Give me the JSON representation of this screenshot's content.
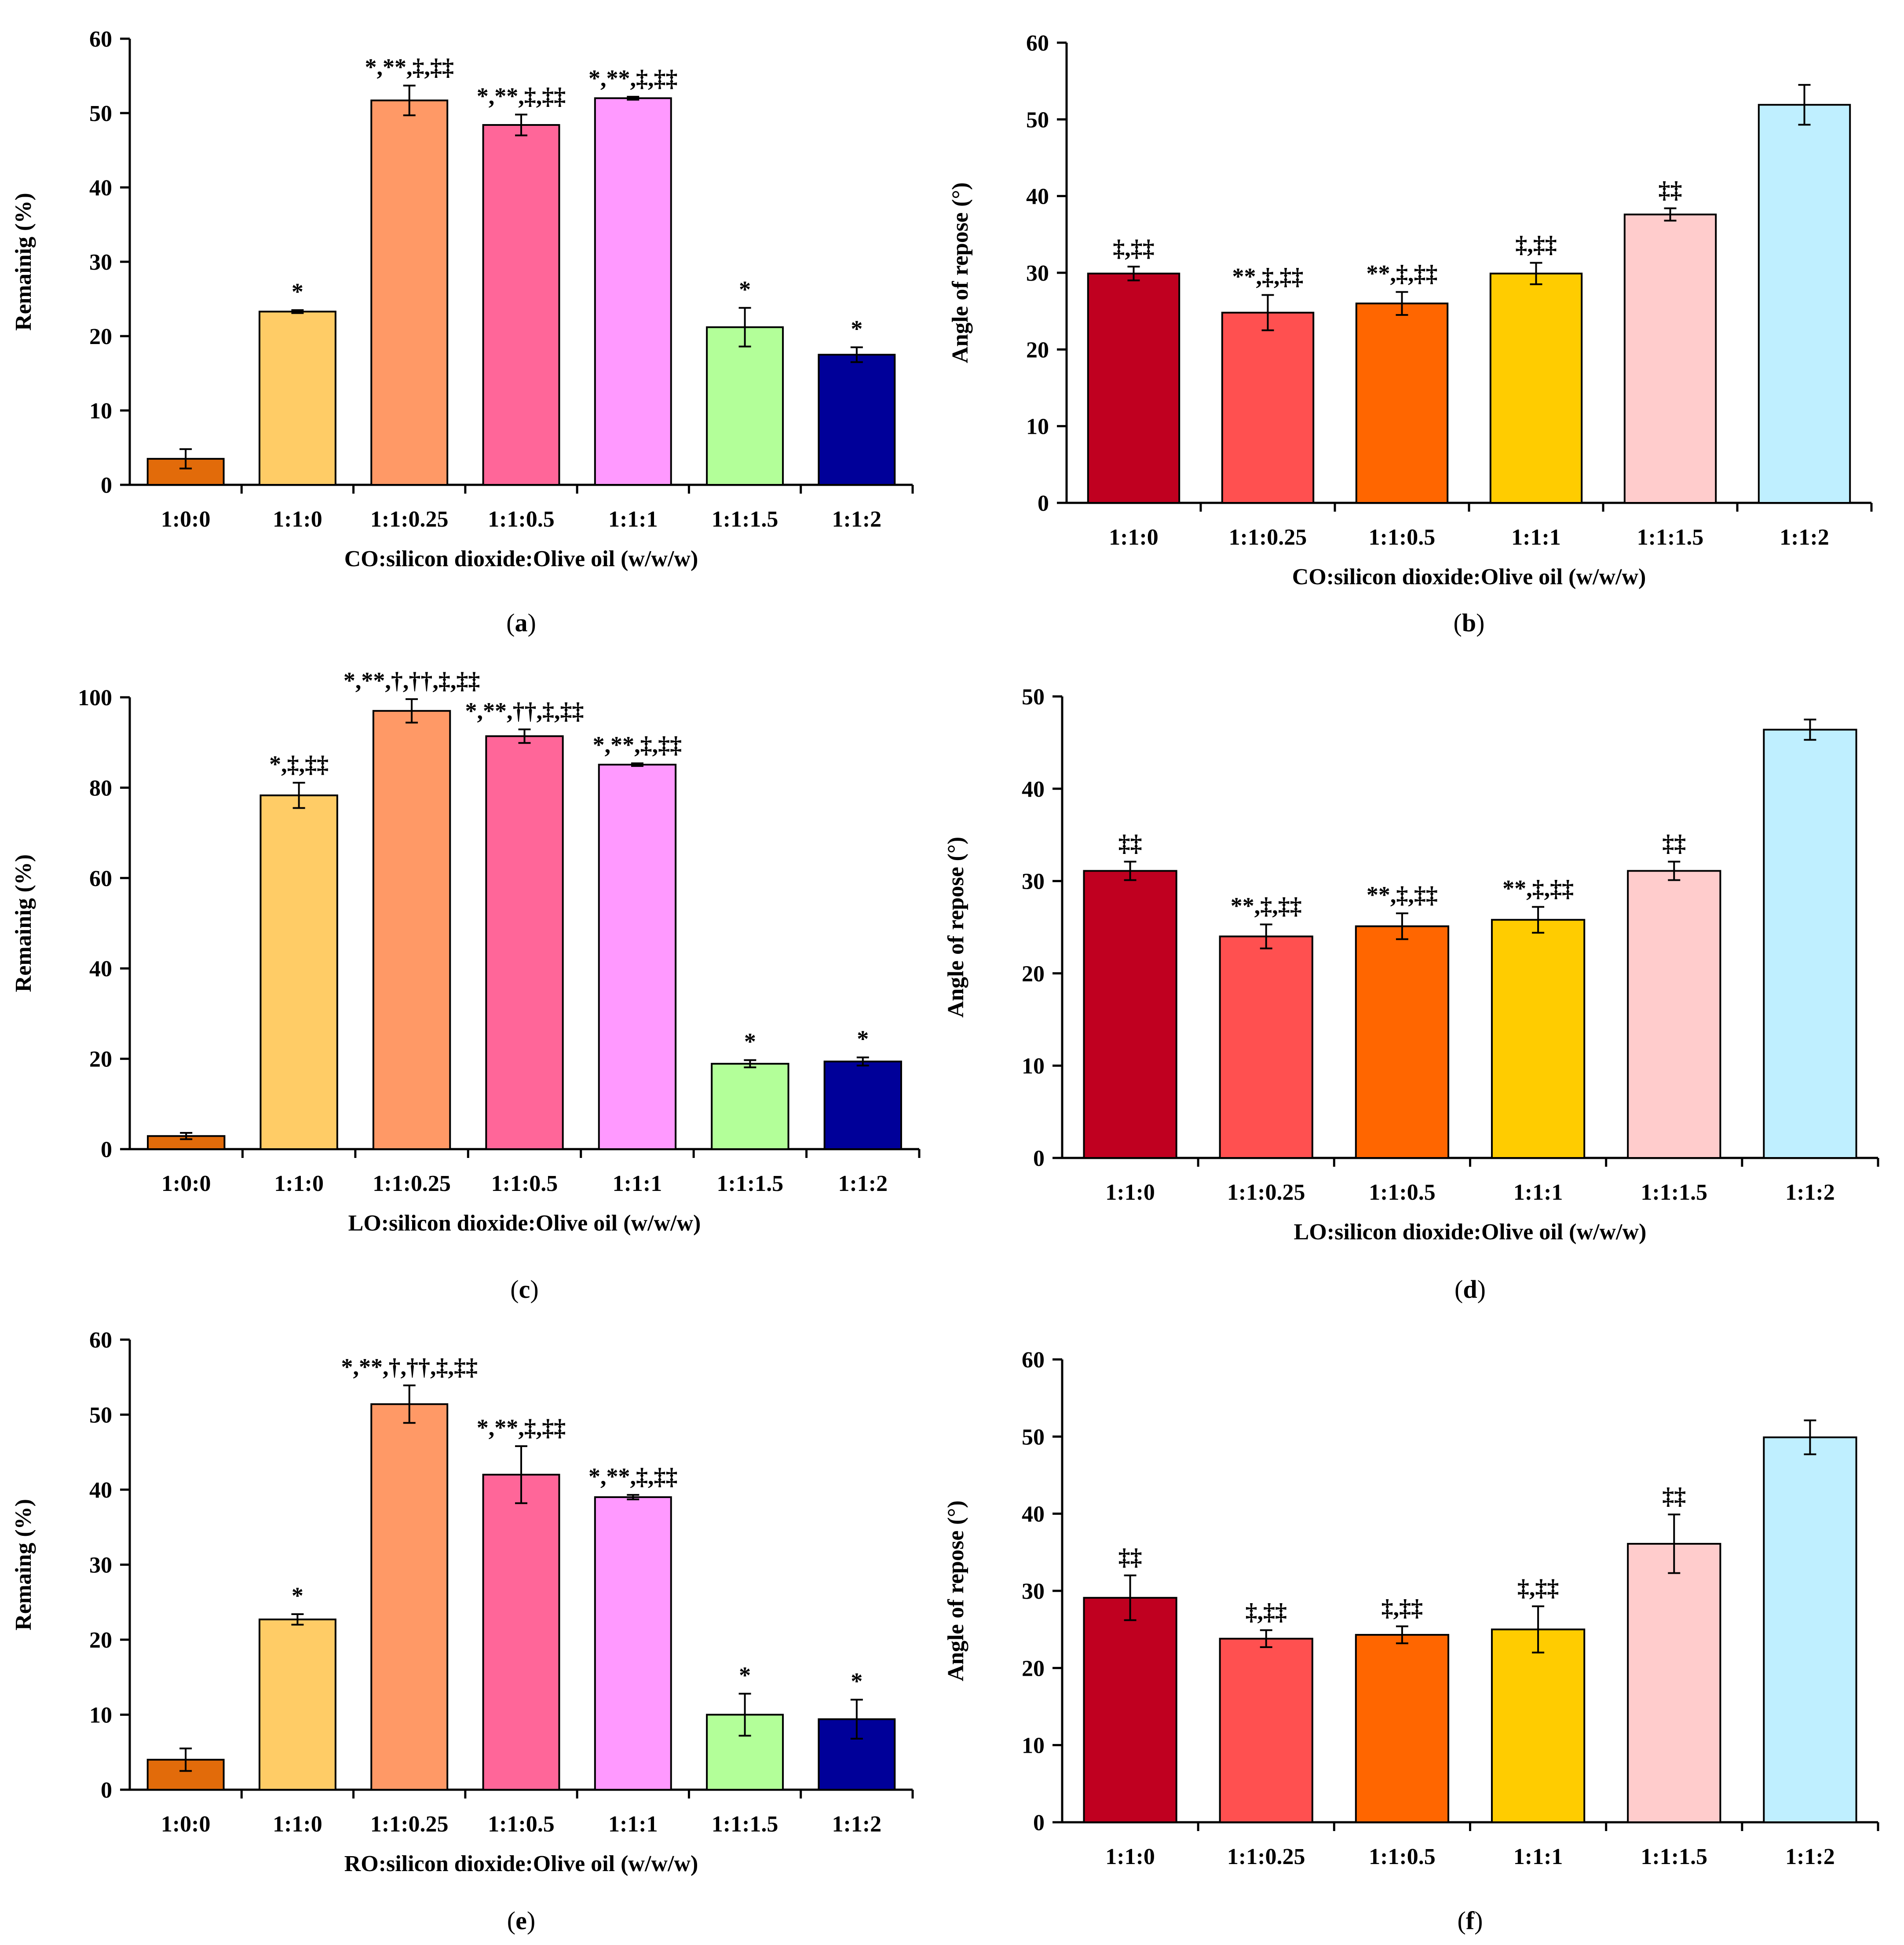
{
  "figure": {
    "colors": {
      "1:0:0": "#E26B0A",
      "1:1:0": "#FFCC66",
      "1:1:0.25": "#FF9966",
      "1:1:0.5": "#FF6699",
      "1:1:1": "#FF99FF",
      "1:1:1.5": "#B3FF99",
      "1:1:2": "#000099",
      "aor_1:1:0": "#C00020",
      "aor_1:1:0.25": "#FF5050",
      "aor_1:1:0.5": "#FF6600",
      "aor_1:1:1": "#FFCC00",
      "aor_1:1:1.5": "#FFCCCC",
      "aor_1:1:2": "#BFEFFF"
    }
  },
  "chart_data": [
    {
      "id": "a",
      "panel_label": "a",
      "type": "bar",
      "ylabel": "Remainig (%)",
      "xlabel": "CO:silicon dioxide:Olive oil (w/w/w)",
      "ylim": [
        0,
        60
      ],
      "yticks": [
        "0",
        "10",
        "20",
        "30",
        "40",
        "50",
        "60"
      ],
      "categories": [
        "1:0:0",
        "1:1:0",
        "1:1:0.25",
        "1:1:0.5",
        "1:1:1",
        "1:1:1.5",
        "1:1:2"
      ],
      "values": [
        3.5,
        23.3,
        51.7,
        48.4,
        52.0,
        21.2,
        17.5
      ],
      "errors": [
        1.3,
        0.2,
        2.0,
        1.4,
        0.2,
        2.6,
        1.0
      ],
      "annotations": [
        "",
        "*",
        "*,**,‡,‡‡",
        "*,**,‡,‡‡",
        "*,**,‡,‡‡",
        "*",
        "*"
      ],
      "colors": [
        "#E26B0A",
        "#FFCC66",
        "#FF9966",
        "#FF6699",
        "#FF99FF",
        "#B3FF99",
        "#000099"
      ]
    },
    {
      "id": "b",
      "panel_label": "b",
      "type": "bar",
      "ylabel": "Angle of repose (°)",
      "xlabel": "CO:silicon dioxide:Olive oil (w/w/w)",
      "ylim": [
        0,
        60
      ],
      "yticks": [
        "0",
        "10",
        "20",
        "30",
        "40",
        "50",
        "60"
      ],
      "categories": [
        "1:1:0",
        "1:1:0.25",
        "1:1:0.5",
        "1:1:1",
        "1:1:1.5",
        "1:1:2"
      ],
      "values": [
        29.9,
        24.8,
        26.0,
        29.9,
        37.6,
        51.9
      ],
      "errors": [
        0.9,
        2.3,
        1.5,
        1.4,
        0.8,
        2.6
      ],
      "annotations": [
        "‡,‡‡",
        "**,‡,‡‡",
        "**,‡,‡‡",
        "‡,‡‡",
        "‡‡",
        ""
      ],
      "colors": [
        "#C00020",
        "#FF5050",
        "#FF6600",
        "#FFCC00",
        "#FFCCCC",
        "#BFEFFF"
      ]
    },
    {
      "id": "c",
      "panel_label": "c",
      "type": "bar",
      "ylabel": "Remainig (%)",
      "xlabel": "LO:silicon dioxide:Olive oil (w/w/w)",
      "ylim": [
        0,
        100
      ],
      "yticks": [
        "0",
        "20",
        "40",
        "60",
        "80",
        "100"
      ],
      "categories": [
        "1:0:0",
        "1:1:0",
        "1:1:0.25",
        "1:1:0.5",
        "1:1:1",
        "1:1:1.5",
        "1:1:2"
      ],
      "values": [
        2.9,
        78.3,
        97.0,
        91.4,
        85.1,
        18.9,
        19.4
      ],
      "errors": [
        0.7,
        2.8,
        2.6,
        1.5,
        0.3,
        0.8,
        0.9
      ],
      "annotations": [
        "",
        "*,‡,‡‡",
        "*,**,†,††,‡,‡‡",
        "*,**,††,‡,‡‡",
        "*,**,‡,‡‡",
        "*",
        "*"
      ],
      "colors": [
        "#E26B0A",
        "#FFCC66",
        "#FF9966",
        "#FF6699",
        "#FF99FF",
        "#B3FF99",
        "#000099"
      ]
    },
    {
      "id": "d",
      "panel_label": "d",
      "type": "bar",
      "ylabel": "Angle of repose (°)",
      "xlabel": "LO:silicon dioxide:Olive oil (w/w/w)",
      "ylim": [
        0,
        50
      ],
      "yticks": [
        "0",
        "10",
        "20",
        "30",
        "40",
        "50"
      ],
      "categories": [
        "1:1:0",
        "1:1:0.25",
        "1:1:0.5",
        "1:1:1",
        "1:1:1.5",
        "1:1:2"
      ],
      "values": [
        31.1,
        24.0,
        25.1,
        25.8,
        31.1,
        46.4
      ],
      "errors": [
        1.0,
        1.3,
        1.4,
        1.4,
        1.0,
        1.1
      ],
      "annotations": [
        "‡‡",
        "**,‡,‡‡",
        "**,‡,‡‡",
        "**,‡,‡‡",
        "‡‡",
        ""
      ],
      "colors": [
        "#C00020",
        "#FF5050",
        "#FF6600",
        "#FFCC00",
        "#FFCCCC",
        "#BFEFFF"
      ]
    },
    {
      "id": "e",
      "panel_label": "e",
      "type": "bar",
      "ylabel": "Remaing (%)",
      "xlabel": "RO:silicon dioxide:Olive oil (w/w/w)",
      "ylim": [
        0,
        60
      ],
      "yticks": [
        "0",
        "10",
        "20",
        "30",
        "40",
        "50",
        "60"
      ],
      "categories": [
        "1:0:0",
        "1:1:0",
        "1:1:0.25",
        "1:1:0.5",
        "1:1:1",
        "1:1:1.5",
        "1:1:2"
      ],
      "values": [
        4.0,
        22.7,
        51.4,
        42.0,
        39.0,
        10.0,
        9.4
      ],
      "errors": [
        1.5,
        0.7,
        2.5,
        3.8,
        0.3,
        2.8,
        2.6
      ],
      "annotations": [
        "",
        "*",
        "*,**,†,††,‡,‡‡",
        "*,**,‡,‡‡",
        "*,**,‡,‡‡",
        "*",
        "*"
      ],
      "colors": [
        "#E26B0A",
        "#FFCC66",
        "#FF9966",
        "#FF6699",
        "#FF99FF",
        "#B3FF99",
        "#000099"
      ]
    },
    {
      "id": "f",
      "panel_label": "f",
      "type": "bar",
      "ylabel": "Angle of repose (°)",
      "xlabel": "",
      "ylim": [
        0,
        60
      ],
      "yticks": [
        "0",
        "10",
        "20",
        "30",
        "40",
        "50",
        "60"
      ],
      "categories": [
        "1:1:0",
        "1:1:0.25",
        "1:1:0.5",
        "1:1:1",
        "1:1:1.5",
        "1:1:2"
      ],
      "values": [
        29.1,
        23.8,
        24.3,
        25.0,
        36.1,
        49.9
      ],
      "errors": [
        2.9,
        1.1,
        1.1,
        3.0,
        3.8,
        2.2
      ],
      "annotations": [
        "‡‡",
        "‡,‡‡",
        "‡,‡‡",
        "‡,‡‡",
        "‡‡",
        ""
      ],
      "colors": [
        "#C00020",
        "#FF5050",
        "#FF6600",
        "#FFCC00",
        "#FFCCCC",
        "#BFEFFF"
      ]
    }
  ]
}
